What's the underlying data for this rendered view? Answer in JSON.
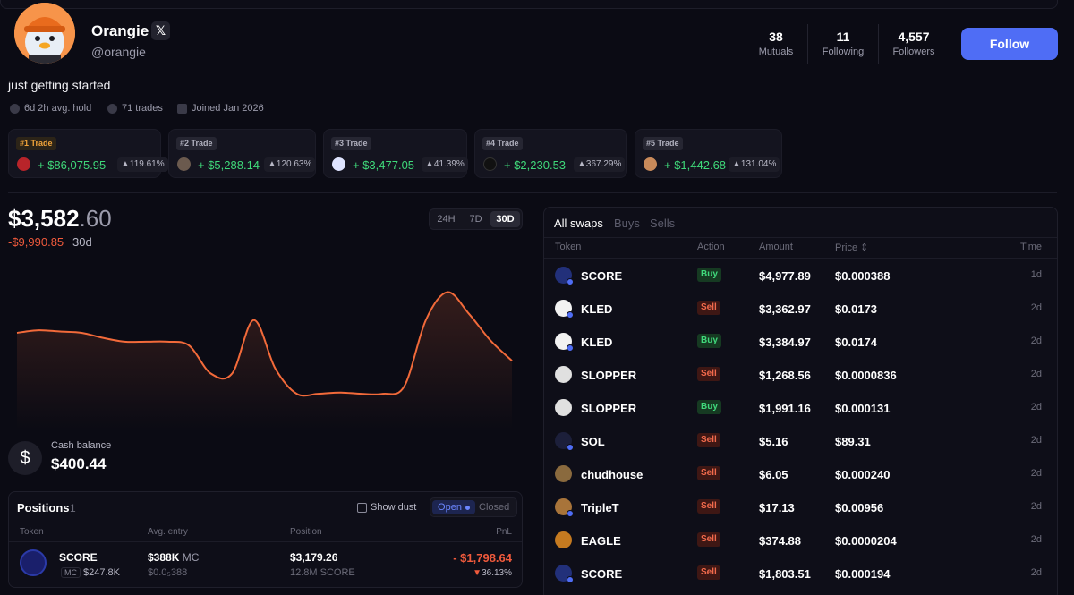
{
  "profile": {
    "name": "Orangie",
    "x_badge": "𝕏",
    "handle": "@orangie",
    "bio": "just getting started",
    "stats": [
      {
        "value": "38",
        "label": "Mutuals"
      },
      {
        "value": "11",
        "label": "Following"
      },
      {
        "value": "4,557",
        "label": "Followers"
      }
    ],
    "follow_label": "Follow",
    "meta": {
      "avg_hold": "6d 2h avg. hold",
      "trades": "71 trades",
      "joined": "Joined Jan 2026"
    }
  },
  "top_trades": [
    {
      "rank": "#1 Trade",
      "pnl": "+ $86,075.95",
      "pct": "▲119.61%"
    },
    {
      "rank": "#2 Trade",
      "pnl": "+ $5,288.14",
      "pct": "▲120.63%"
    },
    {
      "rank": "#3 Trade",
      "pnl": "+ $3,477.05",
      "pct": "▲41.39%"
    },
    {
      "rank": "#4 Trade",
      "pnl": "+ $2,230.53",
      "pct": "▲367.29%"
    },
    {
      "rank": "#5 Trade",
      "pnl": "+ $1,442.68",
      "pct": "▲131.04%"
    }
  ],
  "balance": {
    "whole": "$3,582",
    "cents": ".60",
    "delta": "-$9,990.85",
    "period": "30d",
    "ranges": [
      "24H",
      "7D",
      "30D"
    ],
    "active_range": "30D",
    "colors": {
      "line": "#f26a3a",
      "negative": "#f05a3c",
      "positive": "#3fd97a"
    }
  },
  "chart_data": {
    "type": "line",
    "title": "",
    "values": [
      0.62,
      0.64,
      0.63,
      0.62,
      0.58,
      0.55,
      0.55,
      0.55,
      0.52,
      0.3,
      0.3,
      0.72,
      0.34,
      0.14,
      0.14,
      0.15,
      0.14,
      0.14,
      0.2,
      0.72,
      0.94,
      0.77,
      0.56,
      0.4
    ]
  },
  "cash": {
    "icon": "dollar-icon",
    "label": "Cash balance",
    "value": "$400.44"
  },
  "positions": {
    "title": "Positions",
    "count": "1",
    "show_dust": "Show dust",
    "open": "Open",
    "closed": "Closed",
    "headers": [
      "Token",
      "Avg. entry",
      "Position",
      "PnL"
    ],
    "rows": [
      {
        "symbol": "SCORE",
        "mc_tag": "MC",
        "mc": "$247.8K",
        "entry": "$388K",
        "entry_unit": "MC",
        "entry_price": "$0.0₅388",
        "value": "$3,179.26",
        "amount": "12.8M SCORE",
        "pnl": "- $1,798.64",
        "pnl_pct": "36.13%"
      }
    ]
  },
  "swaps": {
    "tabs": [
      "All swaps",
      "Buys",
      "Sells"
    ],
    "headers": {
      "token": "Token",
      "action": "Action",
      "amount": "Amount",
      "price": "Price ⇕",
      "time": "Time"
    },
    "rows": [
      {
        "token": "SCORE",
        "action": "Buy",
        "amount": "$4,977.89",
        "price": "$0.000388",
        "time": "1d"
      },
      {
        "token": "KLED",
        "action": "Sell",
        "amount": "$3,362.97",
        "price": "$0.0173",
        "time": "2d"
      },
      {
        "token": "KLED",
        "action": "Buy",
        "amount": "$3,384.97",
        "price": "$0.0174",
        "time": "2d"
      },
      {
        "token": "SLOPPER",
        "action": "Sell",
        "amount": "$1,268.56",
        "price": "$0.0000836",
        "time": "2d"
      },
      {
        "token": "SLOPPER",
        "action": "Buy",
        "amount": "$1,991.16",
        "price": "$0.000131",
        "time": "2d"
      },
      {
        "token": "SOL",
        "action": "Sell",
        "amount": "$5.16",
        "price": "$89.31",
        "time": "2d"
      },
      {
        "token": "chudhouse",
        "action": "Sell",
        "amount": "$6.05",
        "price": "$0.000240",
        "time": "2d"
      },
      {
        "token": "TripleT",
        "action": "Sell",
        "amount": "$17.13",
        "price": "$0.00956",
        "time": "2d"
      },
      {
        "token": "EAGLE",
        "action": "Sell",
        "amount": "$374.88",
        "price": "$0.0000204",
        "time": "2d"
      },
      {
        "token": "SCORE",
        "action": "Sell",
        "amount": "$1,803.51",
        "price": "$0.000194",
        "time": "2d"
      }
    ]
  }
}
